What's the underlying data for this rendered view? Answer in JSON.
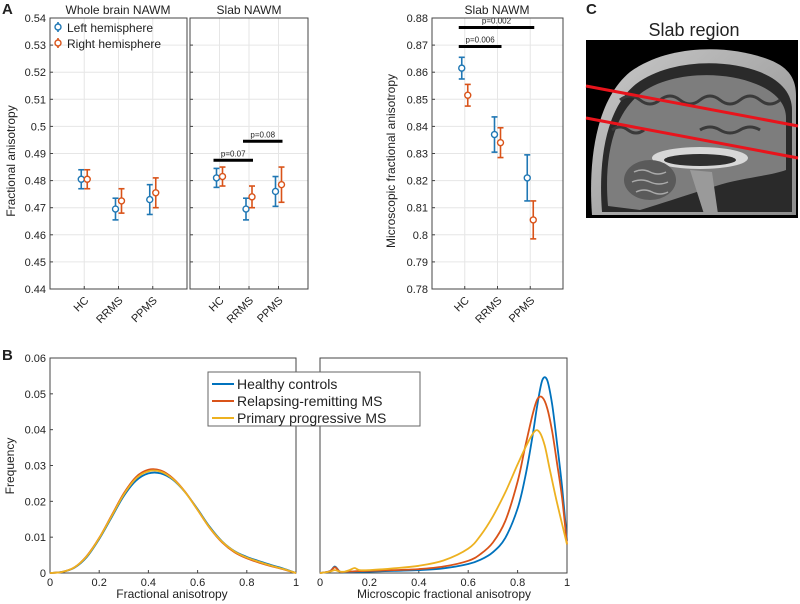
{
  "panel_labels": {
    "a": "A",
    "b": "B",
    "c": "C"
  },
  "colors": {
    "left": "#1f77b4",
    "right": "#d95319",
    "hc": "#0072bd",
    "rrms": "#d95319",
    "ppms": "#edb120",
    "mri_line": "#e8141c"
  },
  "chart_data": [
    {
      "id": "a_whole",
      "type": "errorbar",
      "title": "Whole brain NAWM",
      "ylabel": "Fractional anisotropy",
      "ylim": [
        0.44,
        0.54
      ],
      "yticks": [
        0.44,
        0.45,
        0.46,
        0.47,
        0.48,
        0.49,
        0.5,
        0.51,
        0.52,
        0.53,
        0.54
      ],
      "categories": [
        "HC",
        "RRMS",
        "PPMS"
      ],
      "grid": true,
      "legend_position": "top-right",
      "series": [
        {
          "name": "Left hemisphere",
          "values": [
            0.4805,
            0.4695,
            0.473
          ],
          "err": [
            0.0035,
            0.004,
            0.0055
          ]
        },
        {
          "name": "Right hemisphere",
          "values": [
            0.4805,
            0.4725,
            0.4755
          ],
          "err": [
            0.0035,
            0.0045,
            0.0055
          ]
        }
      ],
      "significance": []
    },
    {
      "id": "a_slab",
      "type": "errorbar",
      "title": "Slab NAWM",
      "ylim": [
        0.44,
        0.54
      ],
      "categories": [
        "HC",
        "RRMS",
        "PPMS"
      ],
      "grid": true,
      "series": [
        {
          "name": "Left hemisphere",
          "values": [
            0.481,
            0.4695,
            0.476
          ],
          "err": [
            0.0035,
            0.004,
            0.0055
          ]
        },
        {
          "name": "Right hemisphere",
          "values": [
            0.4815,
            0.474,
            0.4785
          ],
          "err": [
            0.0035,
            0.004,
            0.0065
          ]
        }
      ],
      "significance": [
        {
          "from": 0,
          "to": 1,
          "y": 0.4875,
          "label": "p=0.07"
        },
        {
          "from": 1,
          "to": 2,
          "y": 0.4945,
          "label": "p=0.08"
        }
      ]
    },
    {
      "id": "a_micro",
      "type": "errorbar",
      "title": "Slab NAWM",
      "ylabel": "Microscopic fractional anisotropy",
      "ylim": [
        0.78,
        0.88
      ],
      "yticks": [
        0.78,
        0.79,
        0.8,
        0.81,
        0.82,
        0.83,
        0.84,
        0.85,
        0.86,
        0.87,
        0.88
      ],
      "categories": [
        "HC",
        "RRMS",
        "PPMS"
      ],
      "grid": true,
      "series": [
        {
          "name": "Left hemisphere",
          "values": [
            0.8615,
            0.837,
            0.821
          ],
          "err": [
            0.004,
            0.0065,
            0.0085
          ]
        },
        {
          "name": "Right hemisphere",
          "values": [
            0.8515,
            0.834,
            0.8055
          ],
          "err": [
            0.004,
            0.0055,
            0.007
          ]
        }
      ],
      "significance": [
        {
          "from": 0,
          "to": 1,
          "y": 0.8695,
          "label": "p=0.006"
        },
        {
          "from": 0,
          "to": 2,
          "y": 0.8765,
          "label": "p=0.002"
        }
      ]
    },
    {
      "id": "b_fa",
      "type": "line",
      "xlabel": "Fractional anisotropy",
      "ylabel": "Frequency",
      "xlim": [
        0,
        1
      ],
      "ylim": [
        0,
        0.06
      ],
      "xticks": [
        0,
        0.2,
        0.4,
        0.6,
        0.8,
        1
      ],
      "xtick_labels": [
        "0",
        "0.2",
        "0.4",
        "0.6",
        "0.8",
        "1"
      ],
      "yticks": [
        0,
        0.01,
        0.02,
        0.03,
        0.04,
        0.05,
        0.06
      ],
      "ytick_labels": [
        "0",
        "0.01",
        "0.02",
        "0.03",
        "0.04",
        "0.05",
        "0.06"
      ],
      "grid": false,
      "series": [
        {
          "name": "Healthy controls",
          "x": [
            0,
            0.05,
            0.1,
            0.15,
            0.2,
            0.25,
            0.3,
            0.35,
            0.4,
            0.45,
            0.5,
            0.55,
            0.6,
            0.65,
            0.7,
            0.75,
            0.8,
            0.85,
            0.9,
            0.95,
            1.0
          ],
          "y": [
            0,
            0.0003,
            0.0015,
            0.0045,
            0.0095,
            0.0155,
            0.0215,
            0.0258,
            0.0278,
            0.0278,
            0.026,
            0.0225,
            0.0178,
            0.0128,
            0.0088,
            0.0061,
            0.0045,
            0.0033,
            0.0022,
            0.0012,
            0.0
          ]
        },
        {
          "name": "Relapsing-remitting MS",
          "x": [
            0,
            0.05,
            0.1,
            0.15,
            0.2,
            0.25,
            0.3,
            0.35,
            0.4,
            0.45,
            0.5,
            0.55,
            0.6,
            0.65,
            0.7,
            0.75,
            0.8,
            0.85,
            0.9,
            0.95,
            1.0
          ],
          "y": [
            0,
            0.0003,
            0.0016,
            0.0048,
            0.0098,
            0.016,
            0.0222,
            0.0268,
            0.0288,
            0.0286,
            0.0264,
            0.0226,
            0.0176,
            0.0125,
            0.0085,
            0.0058,
            0.0041,
            0.0029,
            0.0019,
            0.001,
            0.0
          ]
        },
        {
          "name": "Primary progressive MS",
          "x": [
            0,
            0.05,
            0.1,
            0.15,
            0.2,
            0.25,
            0.3,
            0.35,
            0.4,
            0.45,
            0.5,
            0.55,
            0.6,
            0.65,
            0.7,
            0.75,
            0.8,
            0.85,
            0.9,
            0.95,
            1.0
          ],
          "y": [
            0,
            0.0003,
            0.0016,
            0.0047,
            0.0097,
            0.0158,
            0.0219,
            0.0264,
            0.0284,
            0.0283,
            0.0262,
            0.0225,
            0.0176,
            0.0126,
            0.0087,
            0.006,
            0.0043,
            0.0031,
            0.002,
            0.0011,
            0.0
          ]
        }
      ]
    },
    {
      "id": "b_ufa",
      "type": "line",
      "xlabel": "Microscopic fractional anisotropy",
      "xlim": [
        0,
        1
      ],
      "ylim": [
        0,
        0.06
      ],
      "xticks": [
        0,
        0.2,
        0.4,
        0.6,
        0.8,
        1
      ],
      "xtick_labels": [
        "0",
        "0.2",
        "0.4",
        "0.6",
        "0.8",
        "1"
      ],
      "grid": false,
      "legend_position": "top-left",
      "series": [
        {
          "name": "Healthy controls",
          "x": [
            0,
            0.04,
            0.06,
            0.08,
            0.1,
            0.15,
            0.2,
            0.3,
            0.4,
            0.5,
            0.6,
            0.65,
            0.7,
            0.75,
            0.8,
            0.83,
            0.86,
            0.88,
            0.9,
            0.92,
            0.94,
            0.96,
            0.98,
            1.0
          ],
          "y": [
            0,
            0.0005,
            0.0018,
            0.0004,
            0.0002,
            0.0003,
            0.0004,
            0.0006,
            0.0008,
            0.0013,
            0.0025,
            0.0037,
            0.0058,
            0.0098,
            0.018,
            0.0265,
            0.038,
            0.047,
            0.0538,
            0.0538,
            0.047,
            0.036,
            0.024,
            0.009
          ]
        },
        {
          "name": "Relapsing-remitting MS",
          "x": [
            0,
            0.04,
            0.06,
            0.08,
            0.1,
            0.15,
            0.2,
            0.3,
            0.4,
            0.5,
            0.6,
            0.65,
            0.7,
            0.75,
            0.8,
            0.83,
            0.86,
            0.88,
            0.9,
            0.92,
            0.94,
            0.96,
            0.98,
            1.0
          ],
          "y": [
            0,
            0.0005,
            0.0016,
            0.0004,
            0.0003,
            0.0005,
            0.0006,
            0.0008,
            0.0011,
            0.0018,
            0.0034,
            0.0053,
            0.0085,
            0.0145,
            0.0255,
            0.035,
            0.044,
            0.0485,
            0.049,
            0.046,
            0.0395,
            0.0305,
            0.021,
            0.008
          ]
        },
        {
          "name": "Primary progressive MS",
          "x": [
            0,
            0.04,
            0.06,
            0.08,
            0.1,
            0.12,
            0.14,
            0.16,
            0.2,
            0.3,
            0.4,
            0.5,
            0.6,
            0.65,
            0.7,
            0.75,
            0.8,
            0.84,
            0.87,
            0.89,
            0.91,
            0.93,
            0.96,
            1.0
          ],
          "y": [
            0,
            0.0004,
            0.0008,
            0.0004,
            0.0004,
            0.0008,
            0.0014,
            0.0008,
            0.0008,
            0.0013,
            0.002,
            0.0035,
            0.0068,
            0.0105,
            0.0158,
            0.0225,
            0.0303,
            0.0362,
            0.0396,
            0.0392,
            0.0355,
            0.029,
            0.0195,
            0.008
          ]
        }
      ]
    }
  ],
  "panel_c": {
    "title": "Slab region"
  }
}
